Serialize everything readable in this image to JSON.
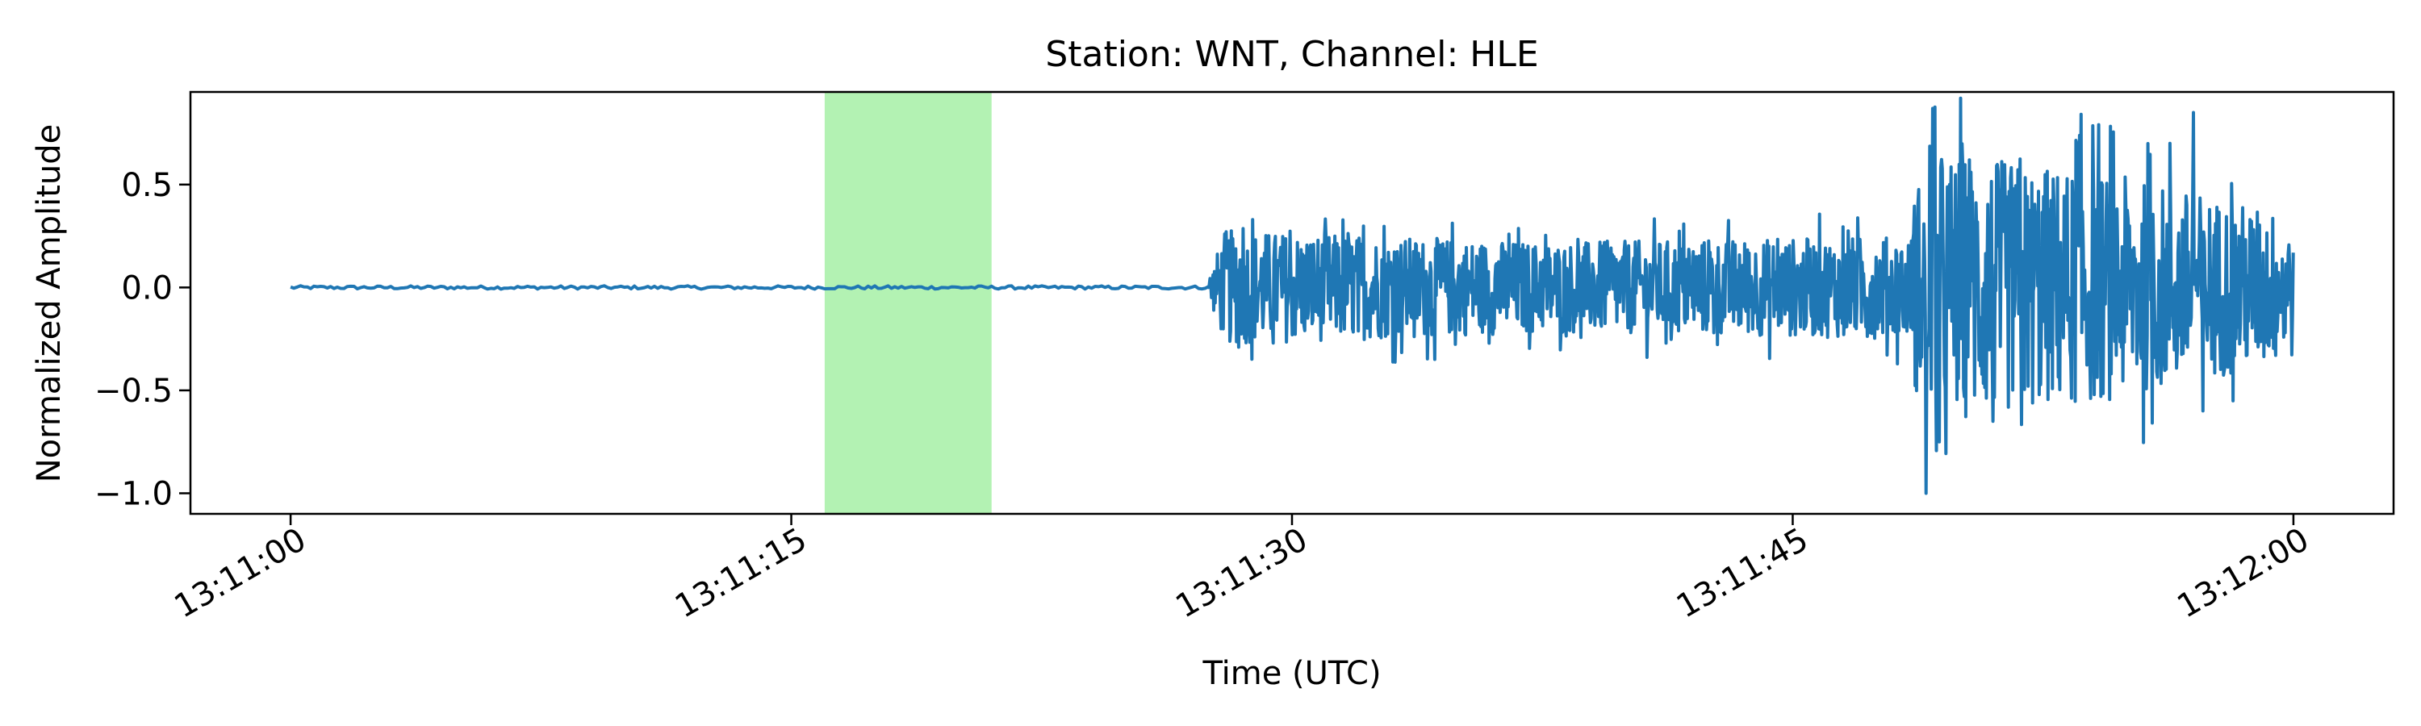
{
  "chart_data": {
    "type": "line",
    "title": "Station: WNT, Channel: HLE",
    "xlabel": "Time (UTC)",
    "ylabel": "Normalized Amplitude",
    "x_unit": "time of day (UTC), HH:MM:SS",
    "xlim": [
      "13:10:57.0",
      "13:12:03.0"
    ],
    "ylim": [
      -1.1,
      0.95
    ],
    "xticks": [
      "13:11:00",
      "13:11:15",
      "13:11:30",
      "13:11:45",
      "13:12:00"
    ],
    "yticks": [
      0.5,
      0.0,
      -0.5,
      -1.0
    ],
    "ytick_labels": [
      "0.5",
      "0.0",
      "−0.5",
      "−1.0"
    ],
    "highlight_span": {
      "from": "13:11:16.0",
      "to": "13:11:21.0",
      "color": "#b3f2b3"
    },
    "series": [
      {
        "color": "#1f77b4",
        "segments": [
          {
            "from": "13:11:00.0",
            "to": "13:11:27.5",
            "envelope": [
              [
                0.0,
                0.008
              ]
            ]
          },
          {
            "from": "13:11:27.5",
            "to": "13:11:48.6",
            "envelope": [
              [
                0.0,
                0.05
              ],
              [
                0.5,
                0.28
              ],
              [
                10.0,
                0.22
              ],
              [
                21.1,
                0.25
              ]
            ]
          },
          {
            "from": "13:11:48.6",
            "to": "13:12:00.0",
            "envelope": [
              [
                0.0,
                0.5
              ],
              [
                1.0,
                0.65
              ],
              [
                6.0,
                0.55
              ],
              [
                11.4,
                0.35
              ]
            ]
          }
        ],
        "peaks": [
          {
            "t": "13:11:49.0",
            "y": -1.0
          },
          {
            "t": "13:11:49.2",
            "y": 0.87
          },
          {
            "t": "13:11:49.4",
            "y": -0.75
          },
          {
            "t": "13:11:50.3",
            "y": 0.62
          },
          {
            "t": "13:11:51.0",
            "y": -0.65
          },
          {
            "t": "13:11:53.5",
            "y": 0.7
          },
          {
            "t": "13:11:56.3",
            "y": 0.7
          },
          {
            "t": "13:11:57.0",
            "y": 0.85
          },
          {
            "t": "13:11:57.3",
            "y": -0.6
          }
        ]
      }
    ]
  }
}
